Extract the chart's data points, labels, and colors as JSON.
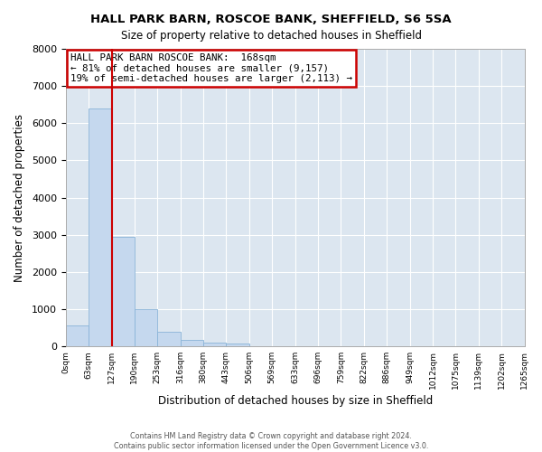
{
  "title1": "HALL PARK BARN, ROSCOE BANK, SHEFFIELD, S6 5SA",
  "title2": "Size of property relative to detached houses in Sheffield",
  "xlabel": "Distribution of detached houses by size in Sheffield",
  "ylabel": "Number of detached properties",
  "bar_color": "#c5d8ee",
  "bar_edge_color": "#8ab4d8",
  "background_color": "#dce6f0",
  "grid_color": "#ffffff",
  "red_line_color": "#cc0000",
  "annotation_box_color": "#cc0000",
  "fig_bg_color": "#ffffff",
  "bin_labels": [
    "0sqm",
    "63sqm",
    "127sqm",
    "190sqm",
    "253sqm",
    "316sqm",
    "380sqm",
    "443sqm",
    "506sqm",
    "569sqm",
    "633sqm",
    "696sqm",
    "759sqm",
    "822sqm",
    "886sqm",
    "949sqm",
    "1012sqm",
    "1075sqm",
    "1139sqm",
    "1202sqm",
    "1265sqm"
  ],
  "bar_heights": [
    550,
    6400,
    2950,
    1000,
    380,
    165,
    100,
    65,
    0,
    0,
    0,
    0,
    0,
    0,
    0,
    0,
    0,
    0,
    0,
    0
  ],
  "red_line_x": 2.0,
  "ylim": [
    0,
    8000
  ],
  "yticks": [
    0,
    1000,
    2000,
    3000,
    4000,
    5000,
    6000,
    7000,
    8000
  ],
  "annotation_line1": "HALL PARK BARN ROSCOE BANK:  168sqm",
  "annotation_line2": "← 81% of detached houses are smaller (9,157)",
  "annotation_line3": "19% of semi-detached houses are larger (2,113) →",
  "footer1": "Contains HM Land Registry data © Crown copyright and database right 2024.",
  "footer2": "Contains public sector information licensed under the Open Government Licence v3.0."
}
